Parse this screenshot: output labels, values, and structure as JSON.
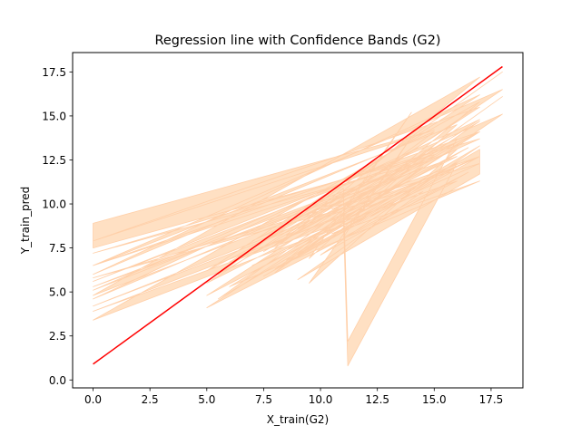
{
  "chart_data": {
    "type": "line",
    "title": "Regression line with Confidence Bands (G2)",
    "xlabel": "X_train(G2)",
    "ylabel": "Y_train_pred",
    "xlim": [
      -0.9,
      18.9
    ],
    "ylim": [
      -0.45,
      18.6
    ],
    "xticks": [
      0.0,
      2.5,
      5.0,
      7.5,
      10.0,
      12.5,
      15.0,
      17.5
    ],
    "xtick_labels": [
      "0.0",
      "2.5",
      "5.0",
      "7.5",
      "10.0",
      "12.5",
      "15.0",
      "17.5"
    ],
    "yticks": [
      0.0,
      2.5,
      5.0,
      7.5,
      10.0,
      12.5,
      15.0,
      17.5
    ],
    "ytick_labels": [
      "0.0",
      "2.5",
      "5.0",
      "7.5",
      "10.0",
      "12.5",
      "15.0",
      "17.5"
    ],
    "grid": false,
    "regression_line": {
      "x": [
        0,
        18
      ],
      "y": [
        0.9,
        17.8
      ],
      "color": "#ff0000"
    },
    "confidence_band": {
      "color": "#ffdab9",
      "outline_color": "#ffcfa8",
      "center_x": [
        0.0,
        15.0,
        0.0,
        17.0,
        5.0,
        16.0,
        0.0,
        13.0,
        7.0,
        17.0,
        0.0,
        14.0,
        5.0,
        17.0,
        0.0,
        15.0,
        8.0,
        17.0,
        0.0,
        12.0,
        8.5,
        11.0,
        11.2,
        16.0,
        9.0,
        18.0,
        5.5,
        17.0,
        10.0,
        16.5,
        11.0,
        14.0,
        9.5,
        16.0,
        0.0,
        18.0,
        8.0,
        15.0,
        11.0,
        17.0,
        7.5,
        16.0,
        0.0,
        13.5,
        6.0,
        17.0,
        10.5,
        14.5,
        9.0,
        17.0
      ],
      "center_y": [
        8.2,
        13.5,
        7.2,
        14.8,
        4.8,
        12.0,
        4.6,
        11.0,
        7.2,
        13.0,
        6.5,
        11.5,
        5.5,
        15.5,
        5.3,
        13.4,
        6.8,
        16.5,
        4.1,
        10.0,
        7.5,
        10.2,
        1.5,
        13.0,
        8.5,
        16.8,
        5.3,
        14.0,
        7.8,
        12.5,
        8.8,
        14.5,
        6.2,
        13.8,
        5.8,
        15.8,
        7.0,
        12.2,
        9.8,
        13.4,
        6.6,
        12.8,
        4.9,
        11.8,
        6.0,
        12.0,
        9.0,
        11.4,
        6.4,
        12.4
      ],
      "half_width": 0.7
    }
  }
}
